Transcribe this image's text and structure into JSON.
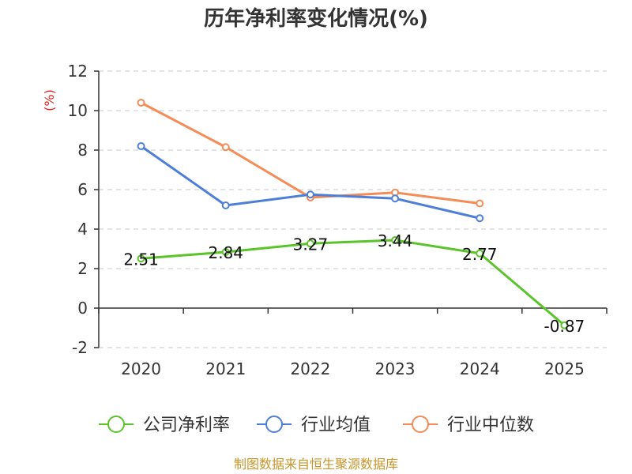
{
  "chart_data": {
    "type": "line",
    "title": "历年净利率变化情况(%)",
    "ylabel": "(%)",
    "xlabel": "",
    "categories": [
      "2020",
      "2021",
      "2022",
      "2023",
      "2024",
      "2025"
    ],
    "ylim": [
      -2,
      12
    ],
    "yticks": [
      -2,
      0,
      2,
      4,
      6,
      8,
      10,
      12
    ],
    "grid": true,
    "legend_position": "bottom",
    "series": [
      {
        "name": "公司净利率",
        "color": "#5ac42a",
        "values": [
          2.51,
          2.84,
          3.27,
          3.44,
          2.77,
          -0.87
        ],
        "labels": [
          "2.51",
          "2.84",
          "3.27",
          "3.44",
          "2.77",
          "-0.87"
        ]
      },
      {
        "name": "行业均值",
        "color": "#4e7fd8",
        "values": [
          8.2,
          5.2,
          5.75,
          5.55,
          4.55,
          null
        ]
      },
      {
        "name": "行业中位数",
        "color": "#f58b56",
        "values": [
          10.4,
          8.15,
          5.6,
          5.85,
          5.3,
          null
        ]
      }
    ]
  },
  "source": "制图数据来自恒生聚源数据库"
}
